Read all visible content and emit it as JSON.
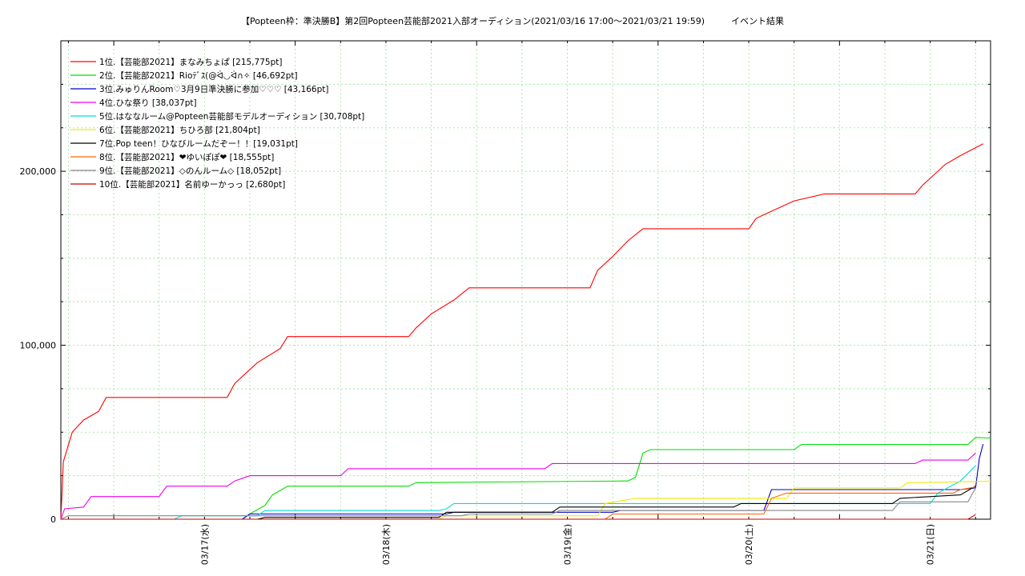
{
  "chart_data": {
    "type": "line",
    "title": "【Popteen枠：準決勝B】第2回Popteen芸能部2021入部オーディション(2021/03/16 17:00～2021/03/21 19:59)　　　イベント結果",
    "xlabel": "",
    "ylabel": "",
    "x_ticks": [
      "03/17(水)",
      "03/18(木)",
      "03/19(金)",
      "03/20(土)",
      "03/21(日)"
    ],
    "x_range": [
      "2021/03/16 17:00",
      "2021/03/21 19:59"
    ],
    "y_ticks": [
      {
        "value": 0,
        "label": "0"
      },
      {
        "value": 100000,
        "label": "100,000"
      },
      {
        "value": 200000,
        "label": "200,000"
      }
    ],
    "ylim": [
      0,
      275000
    ],
    "grid": true,
    "legend_position": "top-left",
    "series": [
      {
        "name": "1位.【芸能部2021】まなみちょぱ [215,775pt]",
        "color": "#ff0000",
        "points": [
          [
            "03/16 17:00",
            0
          ],
          [
            "03/16 17:20",
            33000
          ],
          [
            "03/16 18:30",
            50000
          ],
          [
            "03/16 20:00",
            57000
          ],
          [
            "03/16 22:00",
            62000
          ],
          [
            "03/16 23:00",
            70000
          ],
          [
            "03/17 15:00",
            70000
          ],
          [
            "03/17 16:00",
            78000
          ],
          [
            "03/17 19:00",
            90000
          ],
          [
            "03/17 22:00",
            98000
          ],
          [
            "03/17 23:00",
            105000
          ],
          [
            "03/18 15:00",
            105000
          ],
          [
            "03/18 16:00",
            110000
          ],
          [
            "03/18 18:00",
            118000
          ],
          [
            "03/18 21:00",
            126000
          ],
          [
            "03/18 23:00",
            133000
          ],
          [
            "03/19 15:00",
            133000
          ],
          [
            "03/19 16:00",
            143000
          ],
          [
            "03/19 18:00",
            151000
          ],
          [
            "03/19 20:00",
            160000
          ],
          [
            "03/19 22:00",
            167000
          ],
          [
            "03/20 12:00",
            167000
          ],
          [
            "03/20 13:00",
            173000
          ],
          [
            "03/20 16:00",
            179000
          ],
          [
            "03/20 18:00",
            183000
          ],
          [
            "03/20 22:00",
            187000
          ],
          [
            "03/21 10:00",
            187000
          ],
          [
            "03/21 11:00",
            192000
          ],
          [
            "03/21 14:00",
            204000
          ],
          [
            "03/21 16:00",
            209000
          ],
          [
            "03/21 19:00",
            215775
          ]
        ]
      },
      {
        "name": "2位.【芸能部2021】Rioﾃﾞｽ(@ᐛ◡ᐛ∩✧ [46,692pt]",
        "color": "#00dd00",
        "points": [
          [
            "03/16 17:00",
            0
          ],
          [
            "03/17 17:00",
            0
          ],
          [
            "03/17 18:00",
            3000
          ],
          [
            "03/17 20:00",
            8000
          ],
          [
            "03/17 21:00",
            14000
          ],
          [
            "03/17 23:00",
            19000
          ],
          [
            "03/18 15:00",
            19000
          ],
          [
            "03/18 16:00",
            21000
          ],
          [
            "03/19 20:00",
            22000
          ],
          [
            "03/19 21:00",
            24000
          ],
          [
            "03/19 22:00",
            38000
          ],
          [
            "03/19 23:00",
            40000
          ],
          [
            "03/20 18:00",
            40000
          ],
          [
            "03/20 19:00",
            43000
          ],
          [
            "03/21 17:00",
            43000
          ],
          [
            "03/21 18:00",
            47000
          ],
          [
            "03/21 19:59",
            46692
          ]
        ]
      },
      {
        "name": "3位.みゅりんRoom♡3月9日準決勝に参加♡♡♡ [43,166pt]",
        "color": "#0000cc",
        "points": [
          [
            "03/16 17:00",
            0
          ],
          [
            "03/17 17:00",
            0
          ],
          [
            "03/17 18:00",
            3000
          ],
          [
            "03/18 20:00",
            3000
          ],
          [
            "03/18 21:00",
            4000
          ],
          [
            "03/19 18:00",
            4000
          ],
          [
            "03/19 19:00",
            5000
          ],
          [
            "03/20 14:00",
            5000
          ],
          [
            "03/20 15:00",
            17000
          ],
          [
            "03/21 16:00",
            17000
          ],
          [
            "03/21 18:00",
            18000
          ],
          [
            "03/21 18:30",
            35000
          ],
          [
            "03/21 19:00",
            43166
          ]
        ]
      },
      {
        "name": "4位.ひな祭り [38,037pt]",
        "color": "#ee00ee",
        "points": [
          [
            "03/16 17:00",
            0
          ],
          [
            "03/16 17:30",
            6000
          ],
          [
            "03/16 20:00",
            7000
          ],
          [
            "03/16 21:00",
            13000
          ],
          [
            "03/17 06:00",
            13000
          ],
          [
            "03/17 07:00",
            19000
          ],
          [
            "03/17 15:00",
            19000
          ],
          [
            "03/17 16:00",
            22000
          ],
          [
            "03/17 18:00",
            25000
          ],
          [
            "03/18 06:00",
            25000
          ],
          [
            "03/18 07:00",
            29000
          ],
          [
            "03/19 09:00",
            29000
          ],
          [
            "03/19 10:00",
            32000
          ],
          [
            "03/21 10:00",
            32000
          ],
          [
            "03/21 11:00",
            34000
          ],
          [
            "03/21 17:00",
            34000
          ],
          [
            "03/21 18:00",
            38037
          ]
        ]
      },
      {
        "name": "5位.はななルーム@Popteen芸能部モデルオーディション [30,708pt]",
        "color": "#00dddd",
        "points": [
          [
            "03/16 17:00",
            0
          ],
          [
            "03/17 08:00",
            0
          ],
          [
            "03/17 09:00",
            2000
          ],
          [
            "03/17 19:00",
            2000
          ],
          [
            "03/17 20:00",
            5000
          ],
          [
            "03/18 19:00",
            5000
          ],
          [
            "03/18 20:00",
            6000
          ],
          [
            "03/18 21:00",
            9000
          ],
          [
            "03/21 12:00",
            9000
          ],
          [
            "03/21 13:00",
            15000
          ],
          [
            "03/21 16:00",
            22000
          ],
          [
            "03/21 18:00",
            30708
          ]
        ]
      },
      {
        "name": "6位.【芸能部2021】ちひろ部 [21,804pt]",
        "color": "#eeee00",
        "points": [
          [
            "03/16 17:00",
            0
          ],
          [
            "03/18 19:00",
            0
          ],
          [
            "03/18 20:00",
            2000
          ],
          [
            "03/19 16:00",
            2000
          ],
          [
            "03/19 17:00",
            9000
          ],
          [
            "03/19 21:00",
            12000
          ],
          [
            "03/20 17:00",
            12000
          ],
          [
            "03/20 18:00",
            18000
          ],
          [
            "03/21 08:00",
            18000
          ],
          [
            "03/21 09:00",
            21000
          ],
          [
            "03/21 19:59",
            21804
          ]
        ]
      },
      {
        "name": "7位.Pop teen！ひなびルームだぞー！！[19,031pt]",
        "color": "#000000",
        "points": [
          [
            "03/16 17:00",
            0
          ],
          [
            "03/17 19:00",
            0
          ],
          [
            "03/17 20:00",
            1000
          ],
          [
            "03/18 19:00",
            1000
          ],
          [
            "03/18 20:00",
            4000
          ],
          [
            "03/19 10:00",
            4000
          ],
          [
            "03/19 11:00",
            7000
          ],
          [
            "03/20 10:00",
            7000
          ],
          [
            "03/20 11:00",
            9000
          ],
          [
            "03/21 07:00",
            9000
          ],
          [
            "03/21 08:00",
            12000
          ],
          [
            "03/21 16:00",
            14000
          ],
          [
            "03/21 18:00",
            19031
          ]
        ]
      },
      {
        "name": "8位.【芸能部2021】❤ゆいぽぽ❤ [18,555pt]",
        "color": "#ff6600",
        "points": [
          [
            "03/16 17:00",
            0
          ],
          [
            "03/19 17:00",
            0
          ],
          [
            "03/19 18:00",
            3000
          ],
          [
            "03/20 14:00",
            3000
          ],
          [
            "03/20 15:00",
            12000
          ],
          [
            "03/20 17:00",
            15000
          ],
          [
            "03/21 15:00",
            15000
          ],
          [
            "03/21 16:00",
            17000
          ],
          [
            "03/21 18:00",
            18555
          ]
        ]
      },
      {
        "name": "9位.【芸能部2021】◇のんルーム◇ [18,052pt]",
        "color": "#888888",
        "points": [
          [
            "03/16 17:00",
            0
          ],
          [
            "03/16 18:00",
            2000
          ],
          [
            "03/18 22:00",
            2000
          ],
          [
            "03/18 23:00",
            3000
          ],
          [
            "03/19 10:00",
            3000
          ],
          [
            "03/19 11:00",
            5000
          ],
          [
            "03/20 17:00",
            5000
          ],
          [
            "03/21 07:00",
            5000
          ],
          [
            "03/21 08:00",
            10000
          ],
          [
            "03/21 17:00",
            10000
          ],
          [
            "03/21 18:00",
            18052
          ]
        ]
      },
      {
        "name": "10位.【芸能部2021】名前ゆーかっっ [2,680pt]",
        "color": "#cc0000",
        "points": [
          [
            "03/16 17:00",
            0
          ],
          [
            "03/21 17:00",
            0
          ],
          [
            "03/21 18:00",
            2680
          ]
        ]
      }
    ]
  }
}
